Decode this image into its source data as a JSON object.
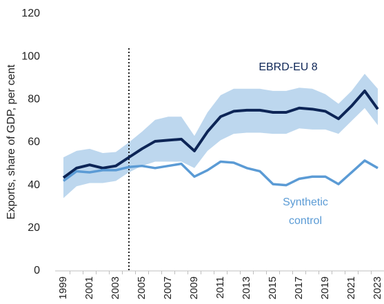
{
  "chart_data": {
    "type": "line",
    "y_label": "Exports, share of GDP, per cent",
    "x": [
      1999,
      2000,
      2001,
      2002,
      2003,
      2004,
      2005,
      2006,
      2007,
      2008,
      2009,
      2010,
      2011,
      2012,
      2013,
      2014,
      2015,
      2016,
      2017,
      2018,
      2019,
      2020,
      2021,
      2022,
      2023
    ],
    "xlim": [
      1999,
      2023
    ],
    "xticks": [
      1999,
      2001,
      2003,
      2005,
      2007,
      2009,
      2011,
      2013,
      2015,
      2017,
      2019,
      2021,
      2023
    ],
    "ylim": [
      0,
      120
    ],
    "yticks": [
      0,
      20,
      40,
      60,
      80,
      100,
      120
    ],
    "vline_x": 2004,
    "band": {
      "color": "#bdd7ee",
      "upper": [
        53,
        56,
        57,
        55,
        55.5,
        60,
        65,
        70.5,
        72,
        72,
        63,
        74,
        82,
        85,
        85,
        85,
        84,
        84,
        85.5,
        85,
        82.5,
        78,
        84,
        92,
        85
      ],
      "lower": [
        34,
        39.5,
        41,
        41,
        42,
        46,
        49,
        51,
        51,
        51,
        48,
        56,
        61,
        64,
        64.5,
        64.5,
        64,
        64,
        66.5,
        66,
        66,
        64,
        70,
        76,
        68
      ]
    },
    "series": [
      {
        "name": "EBRD-EU 8",
        "color": "#0d2556",
        "values": [
          43.5,
          48,
          49.5,
          48,
          49,
          53,
          57,
          60.5,
          61,
          61.5,
          56,
          65,
          72,
          74.5,
          75,
          75,
          74,
          74,
          76,
          75.5,
          74.5,
          71,
          77,
          84,
          75.5
        ]
      },
      {
        "name": "Synthetic control",
        "color": "#5b9bd5",
        "values": [
          42,
          46.5,
          46,
          47,
          47,
          48.5,
          49,
          48,
          49,
          50,
          44,
          47,
          51,
          50.5,
          48,
          46.5,
          40.5,
          40,
          43,
          44,
          44,
          40.5,
          46,
          51.5,
          48
        ]
      }
    ]
  }
}
